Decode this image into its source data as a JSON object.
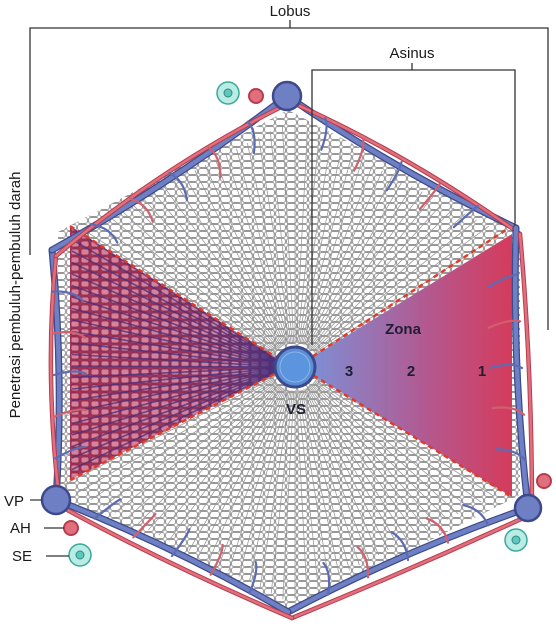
{
  "labels": {
    "lobus": "Lobus",
    "asinus": "Asinus",
    "penetrasi": "Penetrasi pembuluh-pembuluh darah",
    "zona": "Zona",
    "zone3": "3",
    "zone2": "2",
    "zone1": "1",
    "vs": "VS",
    "vp": "VP",
    "ah": "AH",
    "se": "SE"
  },
  "colors": {
    "vein_blue": "#6f7fc4",
    "vein_dark": "#3c4a8c",
    "artery_red": "#e0707e",
    "artery_dark": "#b83c4c",
    "central_vein": "#5b8fd6",
    "zone_red": "#d63a5a",
    "zone_blue": "#7d8fd6",
    "sector_purple": "#a0336a",
    "bile_duct_teal": "#5fc7bd",
    "cell_outline": "#7a7a7a",
    "dashed_red": "#e23a2a"
  }
}
